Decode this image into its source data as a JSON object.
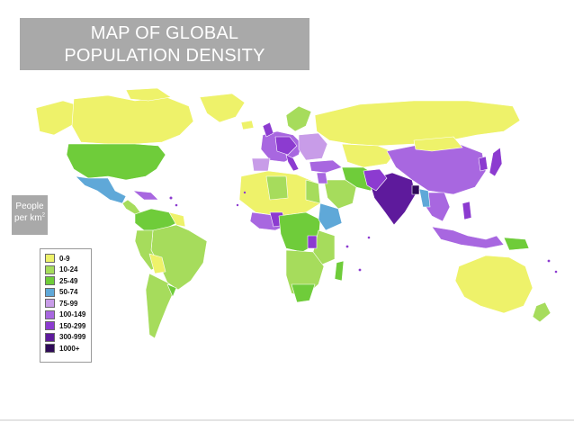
{
  "title": {
    "line1": "MAP OF GLOBAL",
    "line2": "POPULATION DENSITY"
  },
  "unit": {
    "line1": "People",
    "line2": "per km",
    "superscript": "2"
  },
  "legend": {
    "items": [
      {
        "label": "0-9",
        "color": "#eef26a"
      },
      {
        "label": "10-24",
        "color": "#a6dc5c"
      },
      {
        "label": "25-49",
        "color": "#6fcc3a"
      },
      {
        "label": "50-74",
        "color": "#5fa8d8"
      },
      {
        "label": "75-99",
        "color": "#c89ce8"
      },
      {
        "label": "100-149",
        "color": "#a867e0"
      },
      {
        "label": "150-299",
        "color": "#8c3bd0"
      },
      {
        "label": "300-999",
        "color": "#5e1a9c"
      },
      {
        "label": "1000+",
        "color": "#2e0a57"
      }
    ]
  }
}
